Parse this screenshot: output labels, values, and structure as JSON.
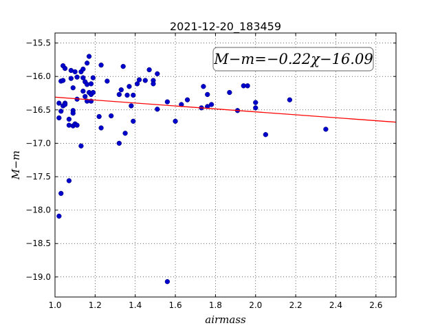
{
  "chart_data": {
    "type": "scatter",
    "title": "2021-12-20_183459",
    "xlabel": "airmass",
    "ylabel": "M−m",
    "xlim": [
      1.0,
      2.7
    ],
    "ylim": [
      -19.3,
      -15.35
    ],
    "y_inverted": true,
    "grid": true,
    "xticks": [
      1.0,
      1.2,
      1.4,
      1.6,
      1.8,
      2.0,
      2.2,
      2.4,
      2.6
    ],
    "xtick_labels": [
      "1.0",
      "1.2",
      "1.4",
      "1.6",
      "1.8",
      "2.0",
      "2.2",
      "2.4",
      "2.6"
    ],
    "yticks": [
      -15.5,
      -16.0,
      -16.5,
      -17.0,
      -17.5,
      -18.0,
      -18.5,
      -19.0
    ],
    "ytick_labels": [
      "−15.5",
      "−16.0",
      "−16.5",
      "−17.0",
      "−17.5",
      "−18.0",
      "−18.5",
      "−19.0"
    ],
    "annotation": "M−m=−0.22χ−16.09",
    "fit": {
      "slope": -0.22,
      "intercept": -16.09,
      "color": "#ff0000"
    },
    "point_color": "#0000cc",
    "points": [
      [
        1.02,
        -16.4
      ],
      [
        1.02,
        -16.62
      ],
      [
        1.02,
        -18.09
      ],
      [
        1.03,
        -17.75
      ],
      [
        1.03,
        -16.52
      ],
      [
        1.03,
        -16.07
      ],
      [
        1.04,
        -16.44
      ],
      [
        1.04,
        -16.06
      ],
      [
        1.04,
        -15.84
      ],
      [
        1.05,
        -15.88
      ],
      [
        1.05,
        -16.4
      ],
      [
        1.05,
        -16.42
      ],
      [
        1.07,
        -16.64
      ],
      [
        1.07,
        -17.56
      ],
      [
        1.07,
        -16.73
      ],
      [
        1.08,
        -16.03
      ],
      [
        1.08,
        -15.91
      ],
      [
        1.09,
        -16.74
      ],
      [
        1.09,
        -16.51
      ],
      [
        1.09,
        -16.17
      ],
      [
        1.09,
        -16.55
      ],
      [
        1.1,
        -15.93
      ],
      [
        1.1,
        -16.71
      ],
      [
        1.11,
        -16.73
      ],
      [
        1.11,
        -16.01
      ],
      [
        1.11,
        -16.34
      ],
      [
        1.13,
        -17.04
      ],
      [
        1.13,
        -15.93
      ],
      [
        1.14,
        -15.89
      ],
      [
        1.14,
        -16.22
      ],
      [
        1.14,
        -16.02
      ],
      [
        1.15,
        -16.3
      ],
      [
        1.15,
        -16.08
      ],
      [
        1.16,
        -15.8
      ],
      [
        1.16,
        -16.12
      ],
      [
        1.16,
        -16.37
      ],
      [
        1.17,
        -15.7
      ],
      [
        1.17,
        -16.24
      ],
      [
        1.18,
        -16.27
      ],
      [
        1.18,
        -16.37
      ],
      [
        1.18,
        -16.11
      ],
      [
        1.19,
        -16.24
      ],
      [
        1.19,
        -16.02
      ],
      [
        1.22,
        -16.6
      ],
      [
        1.23,
        -16.77
      ],
      [
        1.23,
        -15.83
      ],
      [
        1.26,
        -16.07
      ],
      [
        1.28,
        -16.59
      ],
      [
        1.32,
        -16.27
      ],
      [
        1.32,
        -17.0
      ],
      [
        1.33,
        -16.2
      ],
      [
        1.34,
        -15.85
      ],
      [
        1.35,
        -16.85
      ],
      [
        1.36,
        -16.28
      ],
      [
        1.37,
        -16.15
      ],
      [
        1.38,
        -16.44
      ],
      [
        1.39,
        -16.28
      ],
      [
        1.39,
        -16.67
      ],
      [
        1.41,
        -16.11
      ],
      [
        1.42,
        -16.05
      ],
      [
        1.45,
        -16.06
      ],
      [
        1.47,
        -15.9
      ],
      [
        1.49,
        -16.06
      ],
      [
        1.49,
        -16.11
      ],
      [
        1.51,
        -16.49
      ],
      [
        1.51,
        -15.96
      ],
      [
        1.56,
        -16.38
      ],
      [
        1.56,
        -19.07
      ],
      [
        1.6,
        -16.67
      ],
      [
        1.63,
        -16.42
      ],
      [
        1.66,
        -16.35
      ],
      [
        1.73,
        -16.47
      ],
      [
        1.74,
        -16.15
      ],
      [
        1.76,
        -16.27
      ],
      [
        1.76,
        -16.45
      ],
      [
        1.78,
        -16.42
      ],
      [
        1.87,
        -16.24
      ],
      [
        1.91,
        -16.51
      ],
      [
        1.94,
        -16.14
      ],
      [
        1.96,
        -16.14
      ],
      [
        2.0,
        -16.39
      ],
      [
        2.0,
        -16.47
      ],
      [
        2.05,
        -16.87
      ],
      [
        2.17,
        -16.35
      ],
      [
        2.35,
        -16.79
      ]
    ]
  }
}
